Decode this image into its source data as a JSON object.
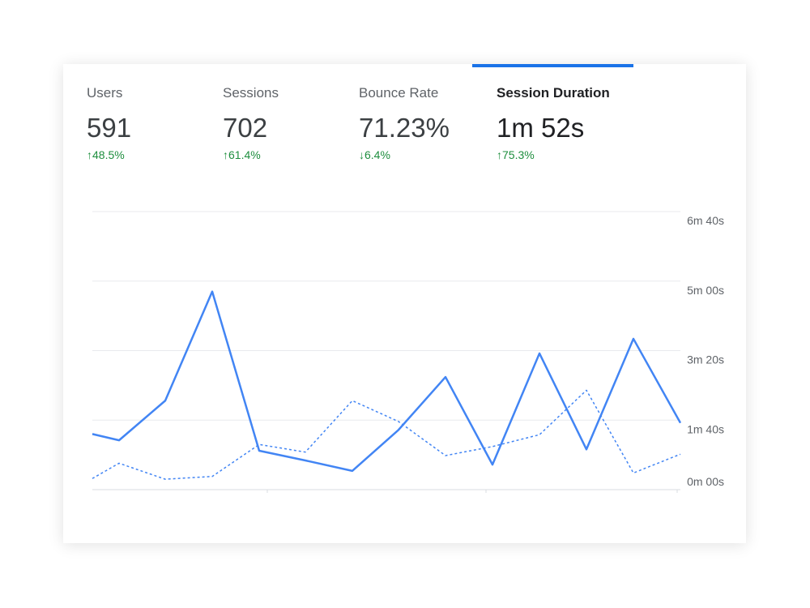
{
  "tabs": [
    {
      "label": "Users",
      "value": "591",
      "delta": "48.5%",
      "direction": "up",
      "arrow": "↑"
    },
    {
      "label": "Sessions",
      "value": "702",
      "delta": "61.4%",
      "direction": "up",
      "arrow": "↑"
    },
    {
      "label": "Bounce Rate",
      "value": "71.23%",
      "delta": "6.4%",
      "direction": "down",
      "arrow": "↓"
    },
    {
      "label": "Session Duration",
      "value": "1m 52s",
      "delta": "75.3%",
      "direction": "up",
      "arrow": "↑",
      "active": true
    }
  ],
  "colors": {
    "accent": "#1a73e8",
    "line": "#4285f4",
    "positive": "#1e8e3e"
  },
  "chart_data": {
    "type": "line",
    "ylim": [
      0,
      400
    ],
    "y_unit": "seconds",
    "y_ticks": [
      {
        "value": 400,
        "label": "6m 40s"
      },
      {
        "value": 300,
        "label": "5m 00s"
      },
      {
        "value": 200,
        "label": "3m 20s"
      },
      {
        "value": 100,
        "label": "1m 40s"
      },
      {
        "value": 0,
        "label": "0m 00s"
      }
    ],
    "grid": true,
    "series": [
      {
        "style": "solid",
        "values": [
          80,
          71,
          128,
          285,
          56,
          42,
          27,
          86,
          162,
          36,
          196,
          58,
          217,
          96
        ]
      },
      {
        "style": "dashed",
        "values": [
          16,
          38,
          15,
          19,
          65,
          54,
          128,
          98,
          49,
          62,
          79,
          143,
          24,
          51
        ]
      }
    ]
  }
}
